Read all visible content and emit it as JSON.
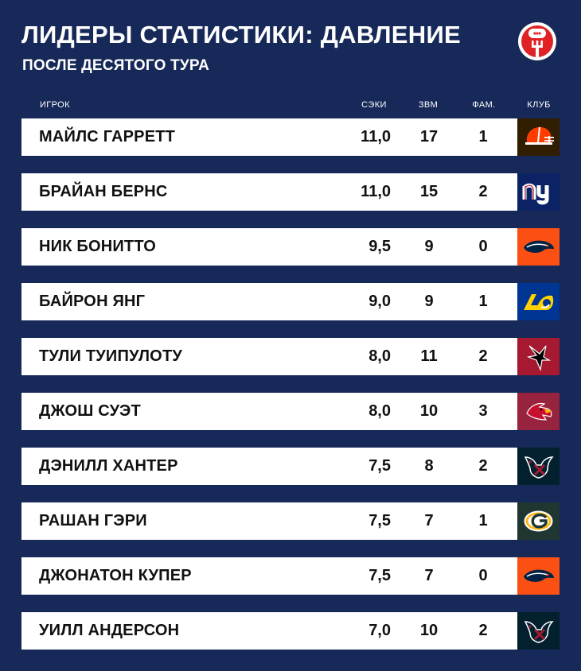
{
  "header": {
    "title": "ЛИДЕРЫ СТАТИСТИКИ: ДАВЛЕНИЕ",
    "subtitle": "ПОСЛЕ ДЕСЯТОГО ТУРА",
    "logo_icon": "football-fork-logo-icon"
  },
  "columns": {
    "player": "ИГРОК",
    "sacks": "СЭКИ",
    "qb_hits": "ЗВМ",
    "tfl": "ФАМ.",
    "club": "КЛУБ"
  },
  "rows": [
    {
      "name": "МАЙЛС ГАРРЕТТ",
      "sacks": "11,0",
      "qb_hits": "17",
      "tfl": "1",
      "team_icon": "cleveland-browns-helmet-icon",
      "team_color": "#311D00"
    },
    {
      "name": "БРАЙАН БЕРНС",
      "sacks": "11,0",
      "qb_hits": "15",
      "tfl": "2",
      "team_icon": "new-york-giants-ny-icon",
      "team_color": "#0B2265"
    },
    {
      "name": "НИК БОНИТТО",
      "sacks": "9,5",
      "qb_hits": "9",
      "tfl": "0",
      "team_icon": "denver-broncos-horse-icon",
      "team_color": "#FB4F14"
    },
    {
      "name": "БАЙРОН ЯНГ",
      "sacks": "9,0",
      "qb_hits": "9",
      "tfl": "1",
      "team_icon": "los-angeles-rams-la-icon",
      "team_color": "#003594"
    },
    {
      "name": "ТУЛИ ТУИПУЛОТУ",
      "sacks": "8,0",
      "qb_hits": "11",
      "tfl": "2",
      "team_icon": "atlanta-falcons-falcon-icon",
      "team_color": "#A71930"
    },
    {
      "name": "ДЖОШ СУЭТ",
      "sacks": "8,0",
      "qb_hits": "10",
      "tfl": "3",
      "team_icon": "arizona-cardinals-bird-icon",
      "team_color": "#97233F"
    },
    {
      "name": "ДЭНИЛЛ ХАНТЕР",
      "sacks": "7,5",
      "qb_hits": "8",
      "tfl": "2",
      "team_icon": "houston-texans-bull-icon",
      "team_color": "#03202F"
    },
    {
      "name": "РАШАН ГЭРИ",
      "sacks": "7,5",
      "qb_hits": "7",
      "tfl": "1",
      "team_icon": "green-bay-packers-g-icon",
      "team_color": "#203731"
    },
    {
      "name": "ДЖОНАТОН КУПЕР",
      "sacks": "7,5",
      "qb_hits": "7",
      "tfl": "0",
      "team_icon": "denver-broncos-horse-icon",
      "team_color": "#FB4F14"
    },
    {
      "name": "УИЛЛ АНДЕРСОН",
      "sacks": "7,0",
      "qb_hits": "10",
      "tfl": "2",
      "team_icon": "houston-texans-bull-icon",
      "team_color": "#03202F"
    }
  ],
  "colors": {
    "background": "#162958",
    "row_background": "#FFFFFF",
    "text_dark": "#111111",
    "accent_red": "#E02226"
  }
}
